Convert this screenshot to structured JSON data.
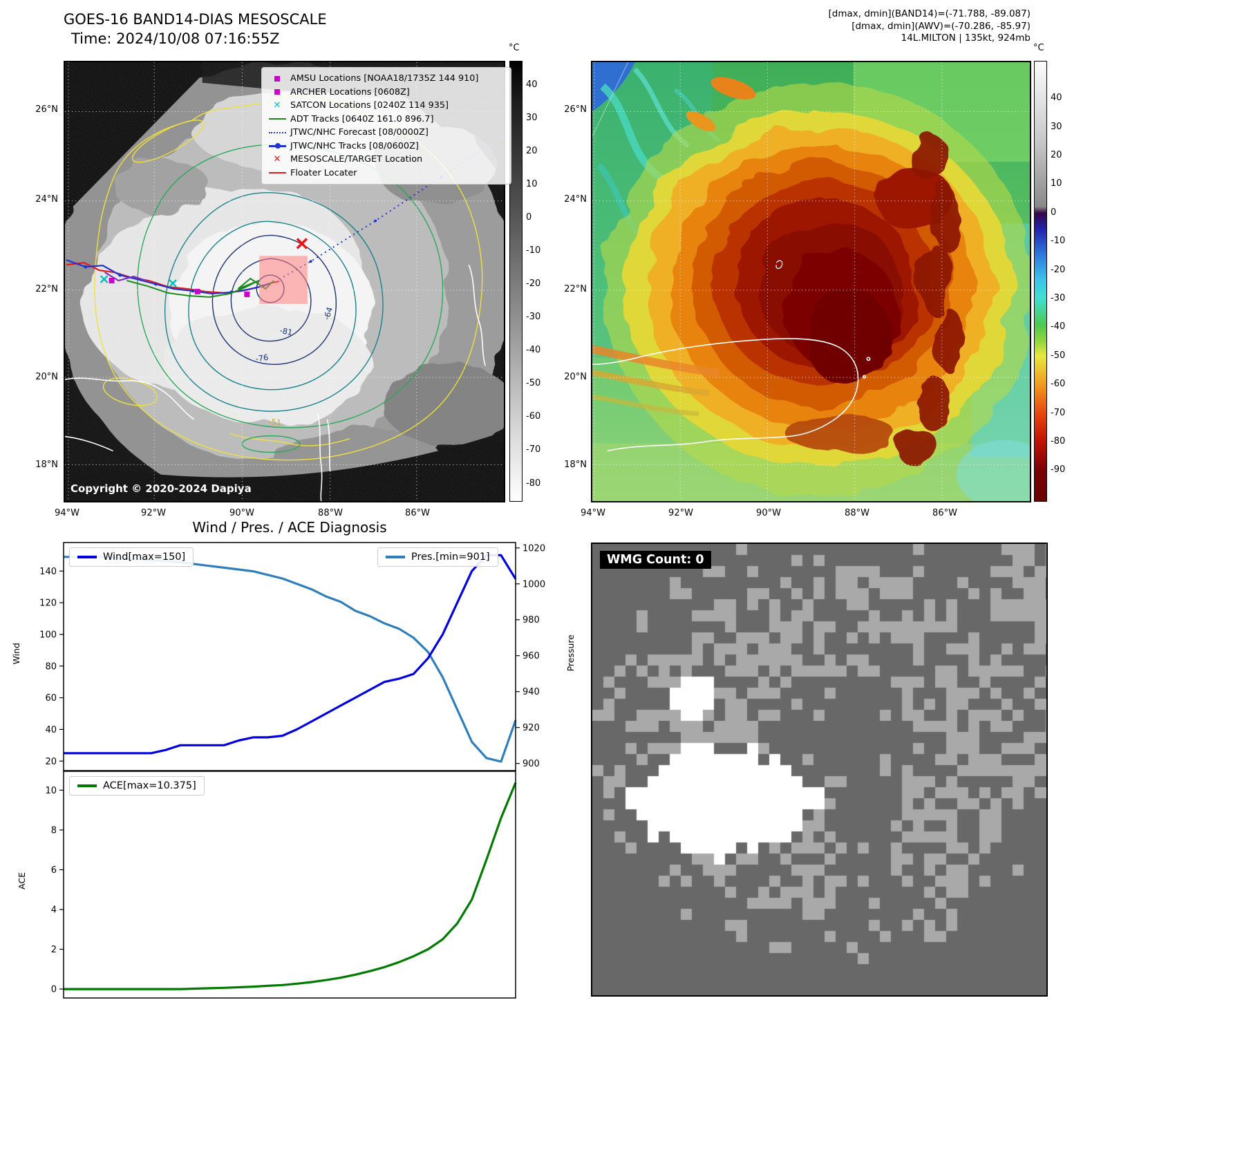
{
  "top_left_map": {
    "title": "GOES-16 BAND14-DIAS MESOSCALE",
    "subtitle": "Time: 2024/10/08 07:16:55Z",
    "copyright": "Copyright © 2020-2024 Dapiya",
    "legend": [
      {
        "marker": "magenta-square",
        "label": "AMSU Locations [NOAA18/1735Z 144 910]"
      },
      {
        "marker": "magenta-square",
        "label": "ARCHER Locations [0608Z]"
      },
      {
        "marker": "cyan-x",
        "label": "SATCON Locations [0240Z 114 935]"
      },
      {
        "marker": "green-line",
        "label": "ADT Tracks [0640Z 161.0 896.7]"
      },
      {
        "marker": "blue-dotted-line",
        "label": "JTWC/NHC Forecast [08/0000Z]"
      },
      {
        "marker": "blue-line-dot",
        "label": "JTWC/NHC Tracks [08/0600Z]"
      },
      {
        "marker": "red-x",
        "label": "MESOSCALE/TARGET Location"
      },
      {
        "marker": "red-line",
        "label": "Floater Locater"
      }
    ],
    "lat_ticks": [
      "26°N",
      "24°N",
      "22°N",
      "20°N",
      "18°N"
    ],
    "lon_ticks": [
      "94°W",
      "92°W",
      "90°W",
      "88°W",
      "86°W"
    ],
    "colorbar": {
      "unit": "°C",
      "ticks": [
        "40",
        "30",
        "20",
        "10",
        "0",
        "-10",
        "-20",
        "-30",
        "-40",
        "-50",
        "-60",
        "-70",
        "-80"
      ]
    },
    "contour_labels": [
      "-64",
      "-81",
      "-76",
      "-51"
    ]
  },
  "top_right_map": {
    "header_lines": [
      "[dmax, dmin](BAND14)=(-71.788, -89.087)",
      "[dmax, dmin](AWV)=(-70.286, -85.97)",
      "14L.MILTON | 135kt, 924mb"
    ],
    "lat_ticks": [
      "26°N",
      "24°N",
      "22°N",
      "20°N",
      "18°N"
    ],
    "lon_ticks": [
      "94°W",
      "92°W",
      "90°W",
      "88°W",
      "86°W"
    ],
    "colorbar": {
      "unit": "°C",
      "ticks": [
        "40",
        "30",
        "20",
        "10",
        "0",
        "-10",
        "-20",
        "-30",
        "-40",
        "-50",
        "-60",
        "-70",
        "-80",
        "-90"
      ]
    }
  },
  "diagnosis": {
    "title": "Wind / Pres. / ACE Diagnosis",
    "wind_legend": "Wind[max=150]",
    "pres_legend": "Pres.[min=901]",
    "ace_legend": "ACE[max=10.375]",
    "wind_axis_label": "Wind",
    "pres_axis_label": "Pressure",
    "ace_axis_label": "ACE"
  },
  "wmg": {
    "label": "WMG Count: 0"
  },
  "chart_data": [
    {
      "type": "line",
      "ylabel_left": "Wind",
      "ylabel_right": "Pressure",
      "ylim_left": [
        14,
        158
      ],
      "ylim_right": [
        896,
        1023
      ],
      "yticks_left": [
        20,
        40,
        60,
        80,
        100,
        120,
        140
      ],
      "yticks_right": [
        900,
        920,
        940,
        960,
        980,
        1000,
        1020
      ],
      "grid": false,
      "legend": [
        "Wind[max=150]",
        "Pres.[min=901]"
      ],
      "legend_position": "top-left and top-right",
      "series": [
        {
          "name": "Pres.[min=901]",
          "axis": "right",
          "color": "#2e7ebc",
          "values": [
            1015,
            1015,
            1015,
            1015,
            1014,
            1014,
            1013,
            1013,
            1012,
            1011,
            1010,
            1009,
            1008,
            1007,
            1005,
            1003,
            1000,
            997,
            993,
            990,
            985,
            982,
            978,
            975,
            970,
            962,
            948,
            930,
            912,
            903,
            901,
            924
          ]
        },
        {
          "name": "Wind[max=150]",
          "axis": "left",
          "color": "#0000e0",
          "values": [
            25,
            25,
            25,
            25,
            25,
            25,
            25,
            27,
            30,
            30,
            30,
            30,
            33,
            35,
            35,
            36,
            40,
            45,
            50,
            55,
            60,
            65,
            70,
            72,
            75,
            85,
            100,
            120,
            140,
            150,
            150,
            135
          ]
        }
      ]
    },
    {
      "type": "line",
      "ylabel_left": "ACE",
      "ylim_left": [
        -0.45,
        10.95
      ],
      "yticks_left": [
        0,
        2,
        4,
        6,
        8,
        10
      ],
      "grid": false,
      "legend": [
        "ACE[max=10.375]"
      ],
      "legend_position": "top-left",
      "series": [
        {
          "name": "ACE[max=10.375]",
          "axis": "left",
          "color": "#007a00",
          "values": [
            0,
            0,
            0,
            0,
            0,
            0,
            0,
            0,
            0,
            0.02,
            0.04,
            0.06,
            0.09,
            0.12,
            0.16,
            0.2,
            0.27,
            0.35,
            0.45,
            0.57,
            0.72,
            0.9,
            1.1,
            1.35,
            1.65,
            2.0,
            2.5,
            3.3,
            4.5,
            6.5,
            8.6,
            10.375
          ]
        }
      ]
    }
  ]
}
